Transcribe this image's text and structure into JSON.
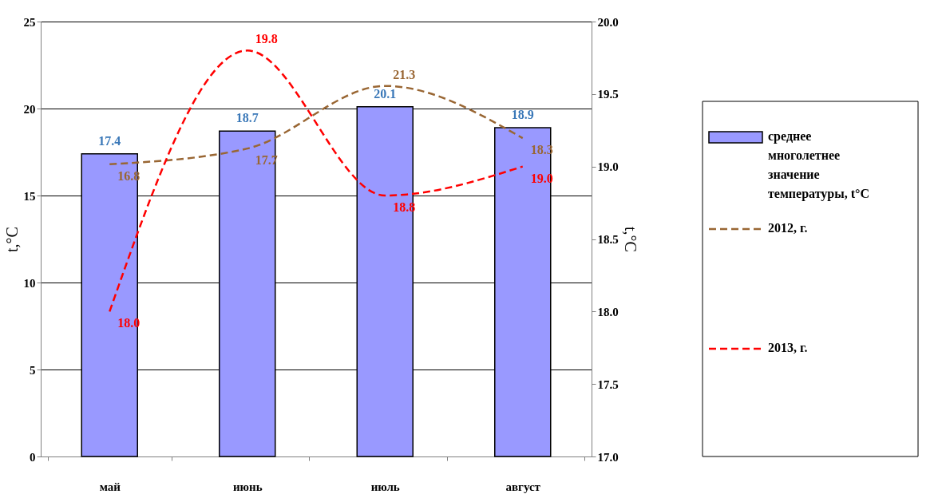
{
  "chart_data": {
    "type": "bar",
    "categories": [
      "май",
      "июнь",
      "июль",
      "август"
    ],
    "ylabel": "t,°C",
    "y2label": "t,°C",
    "ylim": [
      0,
      25
    ],
    "yticks": [
      0,
      5,
      10,
      15,
      20,
      25
    ],
    "y2lim": [
      17,
      20
    ],
    "y2ticks": [
      {
        "value": 17,
        "label": "17.0"
      },
      {
        "value": 17.5,
        "label": "17.5"
      },
      {
        "value": 18,
        "label": "18.0"
      },
      {
        "value": 18.5,
        "label": "18.5"
      },
      {
        "value": 19,
        "label": "19.0"
      },
      {
        "value": 19.5,
        "label": "19.5"
      },
      {
        "value": 20,
        "label": "20.0"
      }
    ],
    "series": [
      {
        "name": "среднее многолетнее значение температуры, t°C",
        "color": "#9999ff",
        "values": [
          17.4,
          18.7,
          20.1,
          18.9
        ],
        "value_labels": [
          "17.4",
          "18.7",
          "20.1",
          "18.9"
        ]
      },
      {
        "name": "2012, г.",
        "type": "line",
        "color": "#996633",
        "line_style": "dashed",
        "values": [
          16.8,
          17.7,
          21.3,
          18.3
        ],
        "value_labels": [
          "16.8",
          "17.7",
          "21.3",
          "18.3"
        ]
      },
      {
        "name": "2013, г.",
        "type": "line",
        "color": "#ff0000",
        "line_style": "dashed",
        "axis": "y2",
        "values": [
          18.0,
          19.8,
          18.8,
          19.0
        ],
        "value_labels": [
          "18.0",
          "19.8",
          "18.8",
          "19.0"
        ]
      }
    ],
    "grid": "y",
    "legend": "right",
    "marker": "none"
  }
}
